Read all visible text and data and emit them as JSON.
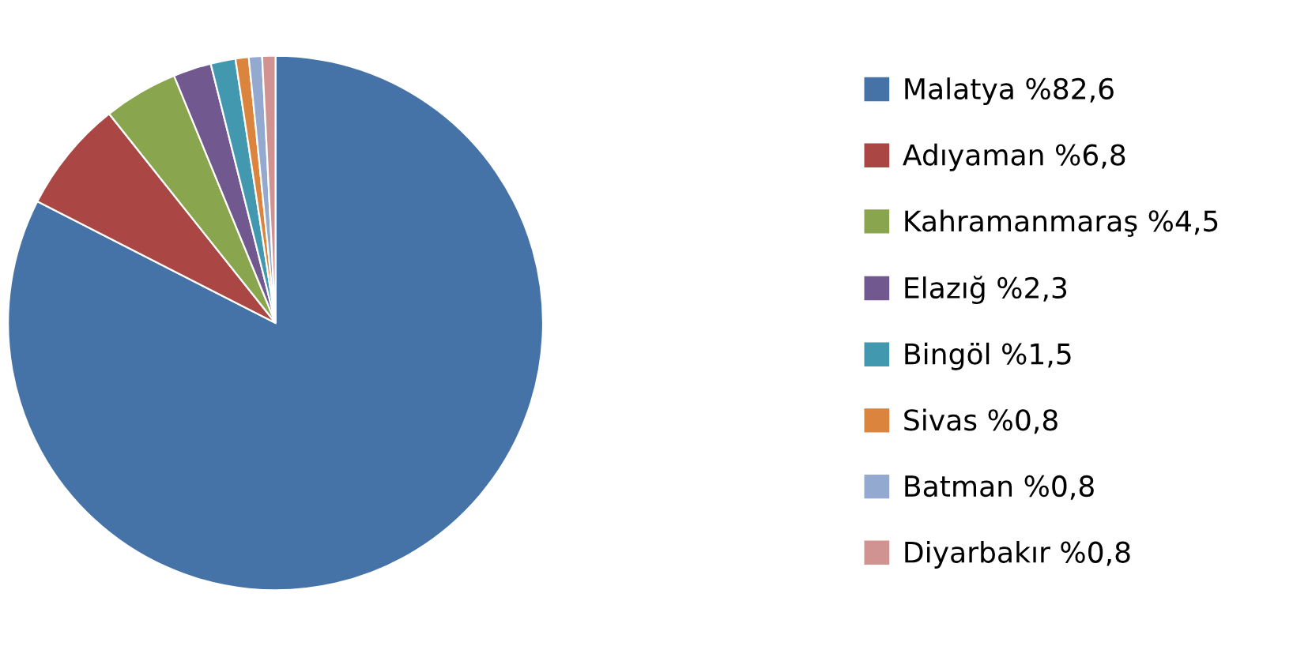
{
  "chart_data": {
    "type": "pie",
    "categories": [
      "Malatya %82,6",
      "Adıyaman %6,8",
      "Kahramanmaraş %4,5",
      "Elazığ %2,3",
      "Bingöl %1,5",
      "Sivas %0,8",
      "Batman %0,8",
      "Diyarbakır %0,8"
    ],
    "values": [
      82.6,
      6.8,
      4.5,
      2.3,
      1.5,
      0.8,
      0.8,
      0.8
    ],
    "colors": [
      "#4572a7",
      "#aa4643",
      "#89a54e",
      "#71588f",
      "#4198af",
      "#db843d",
      "#93a9cf",
      "#d19392"
    ],
    "legend": "right"
  }
}
